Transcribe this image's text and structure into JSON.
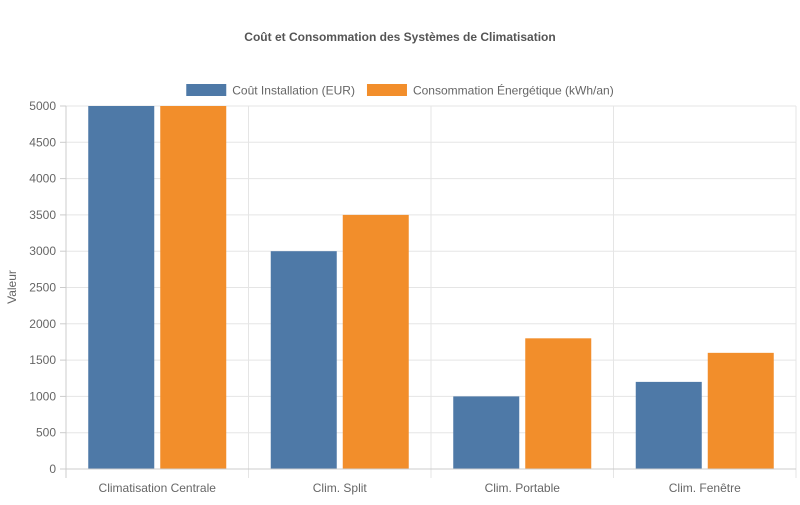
{
  "chart_data": {
    "type": "bar",
    "title": "Coût et Consommation des Systèmes de Climatisation",
    "xlabel": "",
    "ylabel": "Valeur",
    "categories": [
      "Climatisation Centrale",
      "Clim. Split",
      "Clim. Portable",
      "Clim. Fenêtre"
    ],
    "series": [
      {
        "name": "Coût Installation (EUR)",
        "values": [
          5000,
          3000,
          1000,
          1200
        ],
        "color": "#4e79a7"
      },
      {
        "name": "Consommation Énergétique (kWh/an)",
        "values": [
          5000,
          3500,
          1800,
          1600
        ],
        "color": "#f28e2b"
      }
    ],
    "ylim": [
      0,
      5000
    ],
    "yticks": [
      0,
      500,
      1000,
      1500,
      2000,
      2500,
      3000,
      3500,
      4000,
      4500,
      5000
    ],
    "grid": true,
    "legend_position": "top"
  }
}
